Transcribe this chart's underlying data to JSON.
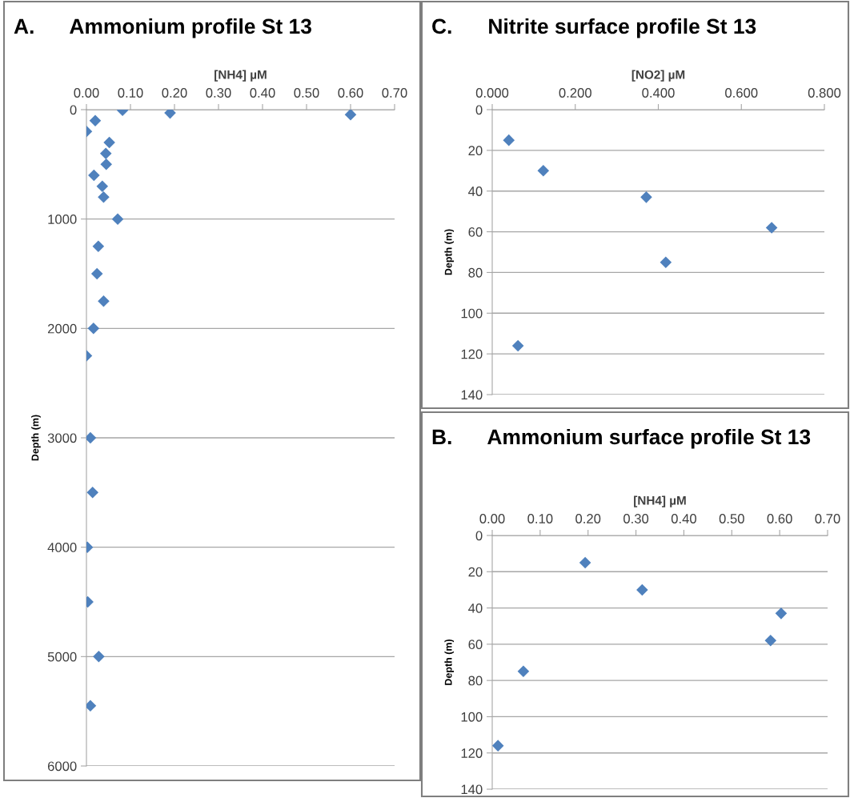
{
  "chart_data": [
    {
      "type": "scatter",
      "title": "A.      Ammonium profile St 13",
      "xlabel": "[NH4] µM",
      "ylabel": "Depth (m)",
      "marker": "diamond",
      "grid": "y",
      "series": [
        {
          "color": "#4f81bd",
          "x": [
            0.082,
            0.19,
            0.6,
            0.02,
            0.0,
            0.052,
            0.044,
            0.045,
            0.017,
            0.036,
            0.039,
            0.071,
            0.027,
            0.024,
            0.039,
            0.016,
            0.0,
            0.009,
            0.014,
            0.002,
            0.003,
            0.028,
            0.009
          ],
          "values": [
            5,
            30,
            45,
            100,
            200,
            300,
            400,
            500,
            600,
            700,
            800,
            1000,
            1250,
            1500,
            1750,
            2000,
            2250,
            3000,
            3500,
            4000,
            4500,
            5000,
            5450
          ]
        }
      ],
      "xlim": [
        0,
        0.7
      ],
      "xticks": [
        {
          "value": 0,
          "label": "0.00"
        },
        {
          "value": 0.1,
          "label": "0.10"
        },
        {
          "value": 0.2,
          "label": "0.20"
        },
        {
          "value": 0.3,
          "label": "0.30"
        },
        {
          "value": 0.4,
          "label": "0.40"
        },
        {
          "value": 0.5,
          "label": "0.50"
        },
        {
          "value": 0.6,
          "label": "0.60"
        },
        {
          "value": 0.7,
          "label": "0.70"
        }
      ],
      "ylim": [
        6000,
        0
      ],
      "yticks": [
        0,
        1000,
        2000,
        3000,
        4000,
        5000,
        6000
      ]
    },
    {
      "type": "scatter",
      "title": "C.      Nitrite surface profile St 13",
      "xlabel": "[NO2] µM",
      "ylabel": "Depth (m)",
      "marker": "diamond",
      "grid": "y",
      "series": [
        {
          "color": "#4f81bd",
          "x": [
            0.04,
            0.123,
            0.371,
            0.673,
            0.418,
            0.062
          ],
          "values": [
            15,
            30,
            43,
            58,
            75,
            116
          ]
        }
      ],
      "xlim": [
        0,
        0.8
      ],
      "xticks": [
        {
          "value": 0,
          "label": "0.000"
        },
        {
          "value": 0.2,
          "label": "0.200"
        },
        {
          "value": 0.4,
          "label": "0.400"
        },
        {
          "value": 0.6,
          "label": "0.600"
        },
        {
          "value": 0.8,
          "label": "0.800"
        }
      ],
      "ylim": [
        140,
        0
      ],
      "yticks": [
        0,
        20,
        40,
        60,
        80,
        100,
        120,
        140
      ]
    },
    {
      "type": "scatter",
      "title": "B.      Ammonium surface profile St 13",
      "xlabel": "[NH4] µM",
      "ylabel": "Depth (m)",
      "marker": "diamond",
      "grid": "y",
      "series": [
        {
          "color": "#4f81bd",
          "x": [
            0.194,
            0.313,
            0.603,
            0.581,
            0.065,
            0.012
          ],
          "values": [
            15,
            30,
            43,
            58,
            75,
            116
          ]
        }
      ],
      "xlim": [
        0,
        0.7
      ],
      "xticks": [
        {
          "value": 0,
          "label": "0.00"
        },
        {
          "value": 0.1,
          "label": "0.10"
        },
        {
          "value": 0.2,
          "label": "0.20"
        },
        {
          "value": 0.3,
          "label": "0.30"
        },
        {
          "value": 0.4,
          "label": "0.40"
        },
        {
          "value": 0.5,
          "label": "0.50"
        },
        {
          "value": 0.6,
          "label": "0.60"
        },
        {
          "value": 0.7,
          "label": "0.70"
        }
      ],
      "ylim": [
        140,
        0
      ],
      "yticks": [
        0,
        20,
        40,
        60,
        80,
        100,
        120,
        140
      ]
    }
  ]
}
